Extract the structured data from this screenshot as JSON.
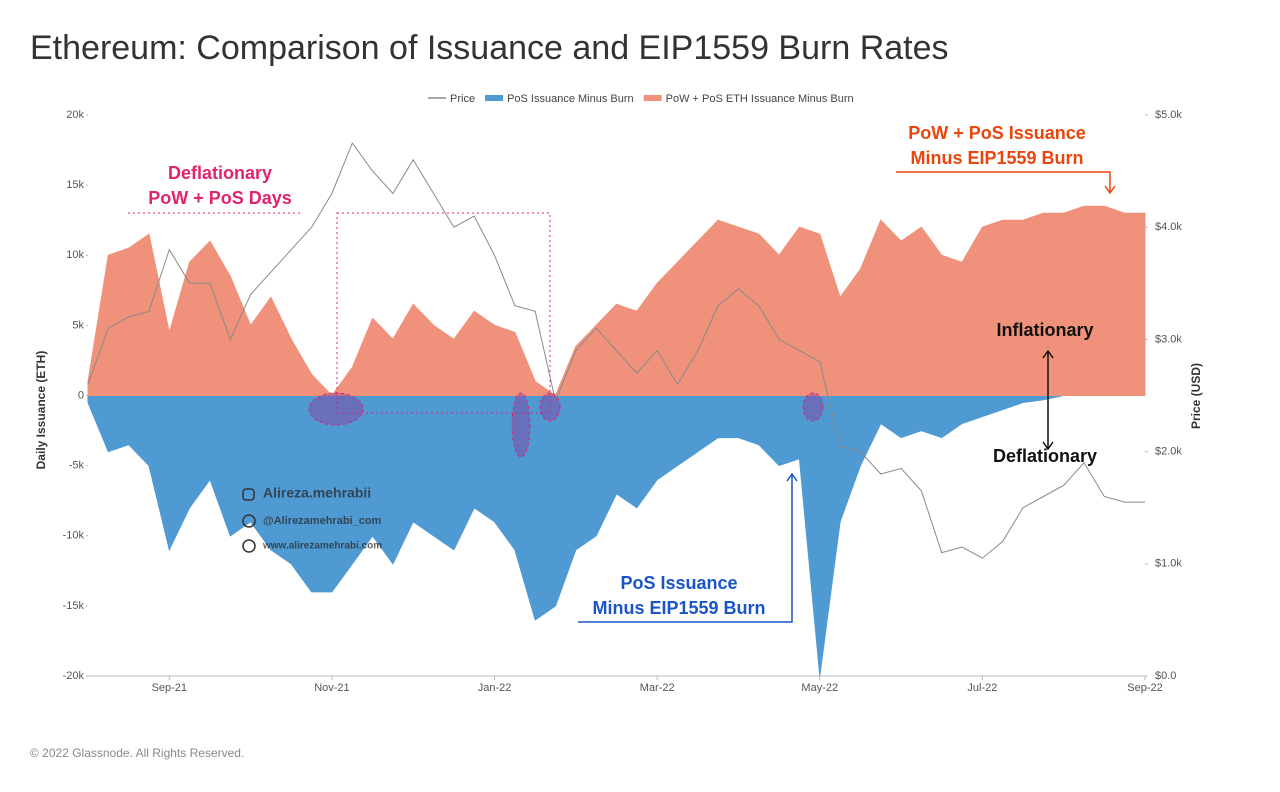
{
  "chart_data": {
    "type": "area",
    "title": "Ethereum: Comparison of Issuance and EIP1559 Burn Rates",
    "footer": "© 2022 Glassnode. All Rights Reserved.",
    "y_label": "Daily Issuance (ETH)",
    "y2_label": "Price (USD)",
    "categories": [
      null,
      null,
      null,
      null,
      "Sep-21",
      null,
      null,
      null,
      null,
      null,
      null,
      null,
      "Nov-21",
      null,
      null,
      null,
      null,
      null,
      null,
      null,
      "Jan-22",
      null,
      null,
      null,
      null,
      null,
      null,
      null,
      "Mar-22",
      null,
      null,
      null,
      null,
      null,
      null,
      null,
      "May-22",
      null,
      null,
      null,
      null,
      null,
      null,
      null,
      "Jul-22",
      null,
      null,
      null,
      null,
      null,
      null,
      null,
      "Sep-22"
    ],
    "series": [
      {
        "name": "Price",
        "type": "line",
        "axis": "y2",
        "color": "#8a8a8a",
        "values": [
          2600,
          3100,
          3200,
          3250,
          3800,
          3500,
          3500,
          3000,
          3400,
          3600,
          3800,
          4000,
          4300,
          4750,
          4500,
          4300,
          4600,
          4300,
          4000,
          4100,
          3750,
          3300,
          3250,
          2450,
          2900,
          3100,
          2900,
          2700,
          2900,
          2600,
          2900,
          3300,
          3450,
          3300,
          3000,
          2900,
          2800,
          2050,
          2000,
          1800,
          1850,
          1650,
          1100,
          1150,
          1050,
          1200,
          1500,
          1600,
          1700,
          1900,
          1600,
          1550,
          1550
        ]
      },
      {
        "name": "PoS Issuance Minus Burn",
        "type": "area",
        "color": "#4f9ad3",
        "values": [
          -500,
          -4000,
          -3500,
          -5000,
          -11000,
          -8000,
          -6000,
          -10000,
          -9000,
          -11000,
          -12000,
          -14000,
          -14000,
          -12000,
          -10000,
          -12000,
          -9000,
          -10000,
          -11000,
          -8000,
          -9000,
          -11000,
          -16000,
          -15000,
          -11000,
          -10000,
          -7000,
          -8000,
          -6000,
          -5000,
          -4000,
          -3000,
          -3000,
          -3500,
          -5000,
          -4500,
          -20000,
          -9000,
          -5000,
          -2000,
          -3000,
          -2500,
          -3000,
          -2000,
          -1500,
          -1000,
          -500,
          -300,
          0,
          500,
          700,
          800,
          500
        ]
      },
      {
        "name": "PoW + PoS ETH Issuance Minus Burn",
        "type": "area",
        "color": "#f0917b",
        "values": [
          1000,
          10000,
          10500,
          11500,
          4500,
          9500,
          11000,
          8500,
          5000,
          7000,
          4000,
          1500,
          0,
          2000,
          5500,
          4000,
          6500,
          5000,
          4000,
          6000,
          5000,
          4500,
          1000,
          0,
          3500,
          5000,
          6500,
          6000,
          8000,
          9500,
          11000,
          12500,
          12000,
          11500,
          10000,
          12000,
          11500,
          7000,
          9000,
          12500,
          11000,
          12000,
          10000,
          9500,
          12000,
          12500,
          12500,
          13000,
          13000,
          13500,
          13500,
          13000,
          13000
        ]
      }
    ],
    "ylim": [
      -20000,
      20000
    ],
    "yticks": [
      {
        "value": -20000,
        "label": "-20k"
      },
      {
        "value": -15000,
        "label": "-15k"
      },
      {
        "value": -10000,
        "label": "-10k"
      },
      {
        "value": -5000,
        "label": "-5k"
      },
      0,
      {
        "value": 5000,
        "label": "5k"
      },
      {
        "value": 10000,
        "label": "10k"
      },
      {
        "value": 15000,
        "label": "15k"
      },
      {
        "value": 20000,
        "label": "20k"
      }
    ],
    "y2lim": [
      0,
      5000
    ],
    "y2ticks": [
      {
        "value": 0,
        "label": "$0.0"
      },
      {
        "value": 1000,
        "label": "$1.0k"
      },
      {
        "value": 2000,
        "label": "$2.0k"
      },
      {
        "value": 3000,
        "label": "$3.0k"
      },
      {
        "value": 4000,
        "label": "$4.0k"
      },
      {
        "value": 5000,
        "label": "$5.0k"
      }
    ],
    "grid": false,
    "annotations": [
      {
        "lines": [
          "Deflationary",
          "PoW + PoS Days"
        ],
        "color": "#e0246f"
      },
      {
        "lines": [
          "PoW + PoS Issuance",
          "Minus EIP1559 Burn"
        ],
        "color": "#e8460c"
      },
      {
        "lines": [
          "Inflationary"
        ],
        "color": "#111111"
      },
      {
        "lines": [
          "Deflationary"
        ],
        "color": "#111111"
      },
      {
        "lines": [
          "PoS Issuance",
          "Minus EIP1559 Burn"
        ],
        "color": "#1a55c8"
      }
    ],
    "watermarks": [
      "Alireza.mehrabii",
      "@Alirezamehrabi_com",
      "www.alirezamehrabi.com"
    ]
  }
}
